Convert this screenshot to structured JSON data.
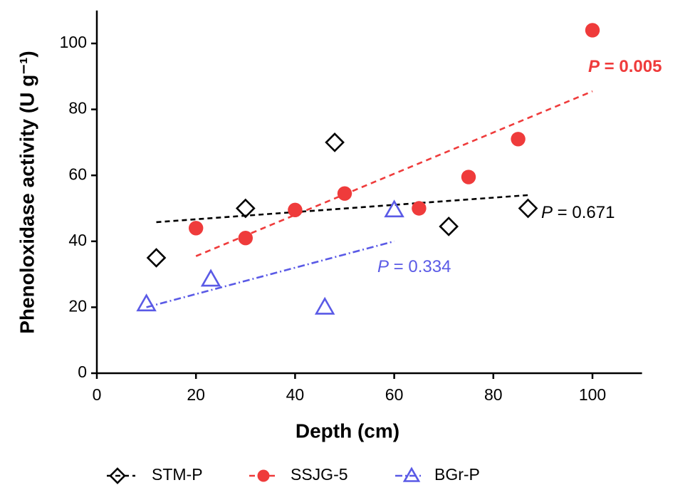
{
  "chart_data": {
    "type": "scatter",
    "xlabel": "Depth (cm)",
    "ylabel": "Phenoloxidase activity (U g⁻¹)",
    "xlim": [
      0,
      110
    ],
    "ylim": [
      0,
      110
    ],
    "xticks": [
      0,
      20,
      40,
      60,
      80,
      100
    ],
    "yticks": [
      0,
      20,
      40,
      60,
      80,
      100
    ],
    "series": [
      {
        "name": "STM-P",
        "color": "#000000",
        "marker": "diamond",
        "dash": "7,5",
        "x": [
          12,
          30,
          48,
          71,
          87
        ],
        "values": [
          35,
          50,
          70,
          44.5,
          50
        ],
        "trend": {
          "x": [
            12,
            87
          ],
          "y": [
            45.8,
            54
          ]
        },
        "annotation": "P = 0.671"
      },
      {
        "name": "SSJG-5",
        "color": "#ef3b3b",
        "marker": "circle",
        "dash": "8,6",
        "x": [
          20,
          30,
          40,
          50,
          65,
          75,
          85,
          100
        ],
        "values": [
          44,
          41,
          49.5,
          54.5,
          50,
          59.5,
          71,
          104
        ],
        "trend": {
          "x": [
            20,
            100
          ],
          "y": [
            35.5,
            85.5
          ]
        },
        "annotation": "P = 0.005"
      },
      {
        "name": "BGr-P",
        "color": "#5a5ae6",
        "marker": "triangle",
        "dash": "10,4,2,4",
        "x": [
          10,
          23,
          46,
          60
        ],
        "values": [
          21,
          28.5,
          20,
          49.5
        ],
        "trend": {
          "x": [
            10,
            60
          ],
          "y": [
            20,
            40
          ]
        },
        "annotation": "P = 0.334"
      }
    ]
  }
}
